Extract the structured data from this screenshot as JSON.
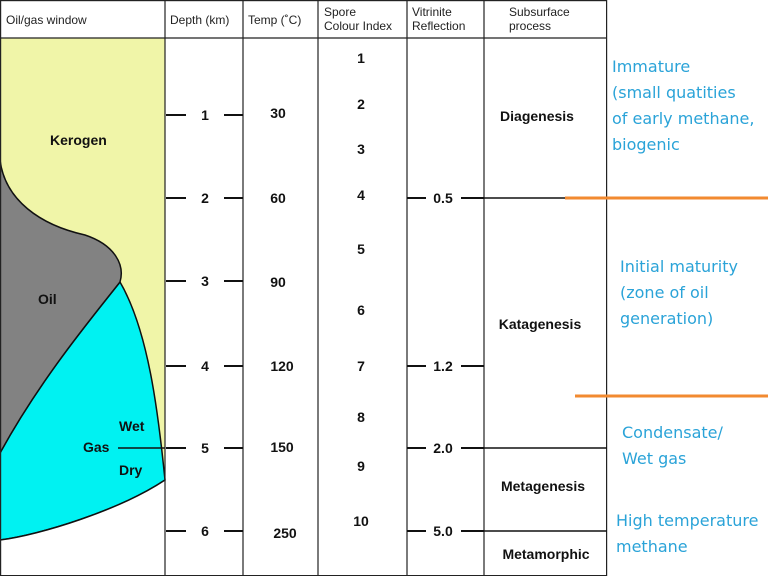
{
  "columns": {
    "window": "Oil/gas window",
    "depth": "Depth (km)",
    "temp": "Temp (˚C)",
    "spore": [
      "Spore",
      "Colour Index"
    ],
    "vitrinite": [
      "Vitrinite",
      "Reflection"
    ],
    "subsurface": [
      "Subsurface",
      "process"
    ]
  },
  "window_labels": {
    "kerogen": "Kerogen",
    "oil": "Oil",
    "gas": "Gas",
    "wet": "Wet",
    "dry": "Dry"
  },
  "depths": [
    "1",
    "2",
    "3",
    "4",
    "5",
    "6"
  ],
  "temps": [
    "30",
    "60",
    "90",
    "120",
    "150",
    "250"
  ],
  "spore_index": [
    "1",
    "2",
    "3",
    "4",
    "5",
    "6",
    "7",
    "8",
    "9",
    "10"
  ],
  "vitrinite": [
    "0.5",
    "1.2",
    "2.0",
    "5.0"
  ],
  "processes": [
    "Diagenesis",
    "Katagenesis",
    "Metagenesis",
    "Metamorphic"
  ],
  "annotations": [
    [
      "Immature",
      "(small quatities",
      "of early methane,",
      "biogenic"
    ],
    [
      "Initial maturity",
      "(zone of oil",
      "generation)"
    ],
    [
      "Condensate/",
      "Wet gas"
    ],
    [
      "High temperature",
      "methane"
    ]
  ],
  "colors": {
    "kerogen": "#f0f5a8",
    "oil": "#828282",
    "gas": "#00f2f2",
    "annotation_text": "#2aa3d8",
    "annotation_line": "#f28a30"
  }
}
